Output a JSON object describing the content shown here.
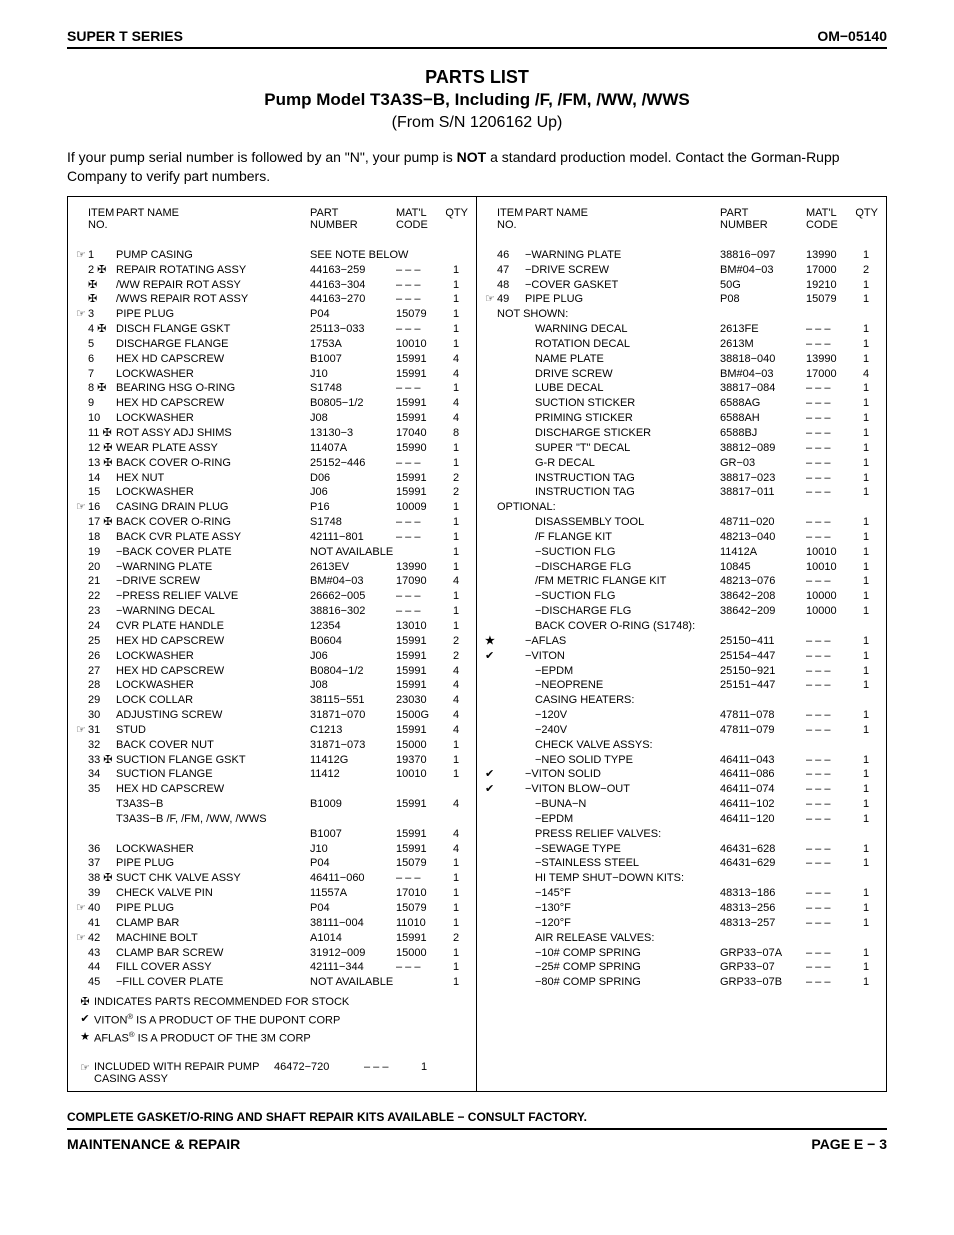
{
  "header_left": "SUPER T SERIES",
  "header_right": "OM−05140",
  "title_line1": "PARTS LIST",
  "title_line2": "Pump Model T3A3S−B, Including /F, /FM, /WW, /WWS",
  "title_line3": "(From S/N 1206162 Up)",
  "intro_before": "If your pump serial number is followed by an \"N\", your pump is ",
  "intro_bold": "NOT",
  "intro_after": " a standard production model. Contact the Gorman-Rupp Company to verify part numbers.",
  "col_head": {
    "item1": "ITEM",
    "item2": "NO.",
    "name": "PART NAME",
    "part1": "PART",
    "part2": "NUMBER",
    "matl1": "MAT'L",
    "matl2": "CODE",
    "qty": "QTY"
  },
  "left_rows": [
    {
      "sym": "☞",
      "item": "1",
      "name": "PUMP CASING",
      "part": "SEE NOTE BELOW",
      "matl": "",
      "qty": ""
    },
    {
      "sym": "",
      "item": "2 ✠",
      "name": "REPAIR ROTATING ASSY",
      "part": "44163−259",
      "matl": "– – –",
      "qty": "1"
    },
    {
      "sym": "",
      "item": "   ✠",
      "name": "/WW REPAIR ROT ASSY",
      "part": "44163−304",
      "matl": "– – –",
      "qty": "1"
    },
    {
      "sym": "",
      "item": "   ✠",
      "name": "/WWS REPAIR ROT ASSY",
      "part": "44163−270",
      "matl": "– – –",
      "qty": "1"
    },
    {
      "sym": "☞",
      "item": "3",
      "name": "PIPE PLUG",
      "part": "P04",
      "matl": "15079",
      "qty": "1"
    },
    {
      "sym": "",
      "item": "4 ✠",
      "name": "DISCH FLANGE GSKT",
      "part": "25113−033",
      "matl": "– – –",
      "qty": "1"
    },
    {
      "sym": "",
      "item": "5",
      "name": "DISCHARGE FLANGE",
      "part": "1753A",
      "matl": "10010",
      "qty": "1"
    },
    {
      "sym": "",
      "item": "6",
      "name": "HEX HD CAPSCREW",
      "part": "B1007",
      "matl": "15991",
      "qty": "4"
    },
    {
      "sym": "",
      "item": "7",
      "name": "LOCKWASHER",
      "part": "J10",
      "matl": "15991",
      "qty": "4"
    },
    {
      "sym": "",
      "item": "8 ✠",
      "name": "BEARING HSG O-RING",
      "part": "S1748",
      "matl": "– – –",
      "qty": "1"
    },
    {
      "sym": "",
      "item": "9",
      "name": "HEX HD CAPSCREW",
      "part": "B0805−1/2",
      "matl": "15991",
      "qty": "4"
    },
    {
      "sym": "",
      "item": "10",
      "name": "LOCKWASHER",
      "part": "J08",
      "matl": "15991",
      "qty": "4"
    },
    {
      "sym": "",
      "item": "11 ✠",
      "name": "ROT ASSY ADJ SHIMS",
      "part": "13130−3",
      "matl": "17040",
      "qty": "8"
    },
    {
      "sym": "",
      "item": "12 ✠",
      "name": "WEAR PLATE ASSY",
      "part": "11407A",
      "matl": "15990",
      "qty": "1"
    },
    {
      "sym": "",
      "item": "13 ✠",
      "name": "BACK COVER O-RING",
      "part": "25152−446",
      "matl": "– – –",
      "qty": "1"
    },
    {
      "sym": "",
      "item": "14",
      "name": "HEX NUT",
      "part": "D06",
      "matl": "15991",
      "qty": "2"
    },
    {
      "sym": "",
      "item": "15",
      "name": "LOCKWASHER",
      "part": "J06",
      "matl": "15991",
      "qty": "2"
    },
    {
      "sym": "☞",
      "item": "16",
      "name": "CASING DRAIN PLUG",
      "part": "P16",
      "matl": "10009",
      "qty": "1"
    },
    {
      "sym": "",
      "item": "17 ✠",
      "name": "BACK COVER O-RING",
      "part": "S1748",
      "matl": "– – –",
      "qty": "1"
    },
    {
      "sym": "",
      "item": "18",
      "name": "BACK CVR PLATE ASSY",
      "part": "42111−801",
      "matl": "– – –",
      "qty": "1"
    },
    {
      "sym": "",
      "item": "19",
      "name": "−BACK COVER PLATE",
      "part": "NOT AVAILABLE",
      "matl": "",
      "qty": "1"
    },
    {
      "sym": "",
      "item": "20",
      "name": "−WARNING PLATE",
      "part": "2613EV",
      "matl": "13990",
      "qty": "1"
    },
    {
      "sym": "",
      "item": "21",
      "name": "−DRIVE SCREW",
      "part": "BM#04−03",
      "matl": "17090",
      "qty": "4"
    },
    {
      "sym": "",
      "item": "22",
      "name": "−PRESS RELIEF VALVE",
      "part": "26662−005",
      "matl": "– – –",
      "qty": "1"
    },
    {
      "sym": "",
      "item": "23",
      "name": "−WARNING DECAL",
      "part": "38816−302",
      "matl": "– – –",
      "qty": "1"
    },
    {
      "sym": "",
      "item": "24",
      "name": "CVR PLATE HANDLE",
      "part": "12354",
      "matl": "13010",
      "qty": "1"
    },
    {
      "sym": "",
      "item": "25",
      "name": "HEX HD CAPSCREW",
      "part": "B0604",
      "matl": "15991",
      "qty": "2"
    },
    {
      "sym": "",
      "item": "26",
      "name": "LOCKWASHER",
      "part": "J06",
      "matl": "15991",
      "qty": "2"
    },
    {
      "sym": "",
      "item": "27",
      "name": "HEX HD CAPSCREW",
      "part": "B0804−1/2",
      "matl": "15991",
      "qty": "4"
    },
    {
      "sym": "",
      "item": "28",
      "name": "LOCKWASHER",
      "part": "J08",
      "matl": "15991",
      "qty": "4"
    },
    {
      "sym": "",
      "item": "29",
      "name": "LOCK COLLAR",
      "part": "38115−551",
      "matl": "23030",
      "qty": "4"
    },
    {
      "sym": "",
      "item": "30",
      "name": "ADJUSTING SCREW",
      "part": "31871−070",
      "matl": "1500G",
      "qty": "4"
    },
    {
      "sym": "☞",
      "item": "31",
      "name": "STUD",
      "part": "C1213",
      "matl": "15991",
      "qty": "4"
    },
    {
      "sym": "",
      "item": "32",
      "name": "BACK COVER NUT",
      "part": "31871−073",
      "matl": "15000",
      "qty": "1"
    },
    {
      "sym": "",
      "item": "33 ✠",
      "name": "SUCTION FLANGE GSKT",
      "part": "11412G",
      "matl": "19370",
      "qty": "1"
    },
    {
      "sym": "",
      "item": "34",
      "name": "SUCTION FLANGE",
      "part": "11412",
      "matl": "10010",
      "qty": "1"
    },
    {
      "sym": "",
      "item": "35",
      "name": "HEX HD CAPSCREW",
      "part": "",
      "matl": "",
      "qty": ""
    },
    {
      "sym": "",
      "item": "",
      "name": "T3A3S−B",
      "part": "B1009",
      "matl": "15991",
      "qty": "4"
    },
    {
      "sym": "",
      "item": "",
      "name": "T3A3S−B /F, /FM, /WW, /WWS",
      "part": "",
      "matl": "",
      "qty": ""
    },
    {
      "sym": "",
      "item": "",
      "name": "",
      "part": "B1007",
      "matl": "15991",
      "qty": "4"
    },
    {
      "sym": "",
      "item": "36",
      "name": "LOCKWASHER",
      "part": "J10",
      "matl": "15991",
      "qty": "4"
    },
    {
      "sym": "",
      "item": "37",
      "name": "PIPE PLUG",
      "part": "P04",
      "matl": "15079",
      "qty": "1"
    },
    {
      "sym": "",
      "item": "38 ✠",
      "name": "SUCT CHK VALVE ASSY",
      "part": "46411−060",
      "matl": "– – –",
      "qty": "1"
    },
    {
      "sym": "",
      "item": "39",
      "name": "CHECK VALVE PIN",
      "part": "11557A",
      "matl": "17010",
      "qty": "1"
    },
    {
      "sym": "☞",
      "item": "40",
      "name": "PIPE PLUG",
      "part": "P04",
      "matl": "15079",
      "qty": "1"
    },
    {
      "sym": "",
      "item": "41",
      "name": "CLAMP BAR",
      "part": "38111−004",
      "matl": "11010",
      "qty": "1"
    },
    {
      "sym": "☞",
      "item": "42",
      "name": "MACHINE BOLT",
      "part": "A1014",
      "matl": "15991",
      "qty": "2"
    },
    {
      "sym": "",
      "item": "43",
      "name": "CLAMP BAR SCREW",
      "part": "31912−009",
      "matl": "15000",
      "qty": "1"
    },
    {
      "sym": "",
      "item": "44",
      "name": "FILL COVER ASSY",
      "part": "42111−344",
      "matl": "– – –",
      "qty": "1"
    },
    {
      "sym": "",
      "item": "45",
      "name": "−FILL COVER PLATE",
      "part": "NOT AVAILABLE",
      "matl": "",
      "qty": "1"
    }
  ],
  "right_rows": [
    {
      "sym": "",
      "item": "46",
      "name": "−WARNING PLATE",
      "part": "38816−097",
      "matl": "13990",
      "qty": "1"
    },
    {
      "sym": "",
      "item": "47",
      "name": "−DRIVE SCREW",
      "part": "BM#04−03",
      "matl": "17000",
      "qty": "2"
    },
    {
      "sym": "",
      "item": "48",
      "name": "−COVER GASKET",
      "part": "50G",
      "matl": "19210",
      "qty": "1"
    },
    {
      "sym": "☞",
      "item": "49",
      "name": "PIPE PLUG",
      "part": "P08",
      "matl": "15079",
      "qty": "1"
    },
    {
      "sym": "",
      "item": "",
      "name": "NOT SHOWN:",
      "noitem": true
    },
    {
      "sym": "",
      "item": "",
      "name": "WARNING DECAL",
      "part": "2613FE",
      "matl": "– – –",
      "qty": "1",
      "indent": 1
    },
    {
      "sym": "",
      "item": "",
      "name": "ROTATION DECAL",
      "part": "2613M",
      "matl": "– – –",
      "qty": "1",
      "indent": 1
    },
    {
      "sym": "",
      "item": "",
      "name": "NAME PLATE",
      "part": "38818−040",
      "matl": "13990",
      "qty": "1",
      "indent": 1
    },
    {
      "sym": "",
      "item": "",
      "name": "DRIVE SCREW",
      "part": "BM#04−03",
      "matl": "17000",
      "qty": "4",
      "indent": 1
    },
    {
      "sym": "",
      "item": "",
      "name": "LUBE DECAL",
      "part": "38817−084",
      "matl": "– – –",
      "qty": "1",
      "indent": 1
    },
    {
      "sym": "",
      "item": "",
      "name": "SUCTION STICKER",
      "part": "6588AG",
      "matl": "– – –",
      "qty": "1",
      "indent": 1
    },
    {
      "sym": "",
      "item": "",
      "name": "PRIMING STICKER",
      "part": "6588AH",
      "matl": "– – –",
      "qty": "1",
      "indent": 1
    },
    {
      "sym": "",
      "item": "",
      "name": "DISCHARGE STICKER",
      "part": "6588BJ",
      "matl": "– – –",
      "qty": "1",
      "indent": 1
    },
    {
      "sym": "",
      "item": "",
      "name": "SUPER \"T\" DECAL",
      "part": "38812−089",
      "matl": "– – –",
      "qty": "1",
      "indent": 1
    },
    {
      "sym": "",
      "item": "",
      "name": "G-R DECAL",
      "part": "GR−03",
      "matl": "– – –",
      "qty": "1",
      "indent": 1
    },
    {
      "sym": "",
      "item": "",
      "name": "INSTRUCTION TAG",
      "part": "38817−023",
      "matl": "– – –",
      "qty": "1",
      "indent": 1
    },
    {
      "sym": "",
      "item": "",
      "name": "INSTRUCTION TAG",
      "part": "38817−011",
      "matl": "– – –",
      "qty": "1",
      "indent": 1
    },
    {
      "sym": "",
      "item": "",
      "name": "OPTIONAL:",
      "noitem": true
    },
    {
      "sym": "",
      "item": "",
      "name": "DISASSEMBLY TOOL",
      "part": "48711−020",
      "matl": "– – –",
      "qty": "1",
      "indent": 1
    },
    {
      "sym": "",
      "item": "",
      "name": "/F FLANGE KIT",
      "part": "48213−040",
      "matl": "– – –",
      "qty": "1",
      "indent": 1
    },
    {
      "sym": "",
      "item": "",
      "name": "−SUCTION FLG",
      "part": "11412A",
      "matl": "10010",
      "qty": "1",
      "indent": 1
    },
    {
      "sym": "",
      "item": "",
      "name": "−DISCHARGE FLG",
      "part": "10845",
      "matl": "10010",
      "qty": "1",
      "indent": 1
    },
    {
      "sym": "",
      "item": "",
      "name": "/FM METRIC FLANGE KIT",
      "part": "48213−076",
      "matl": "– – –",
      "qty": "1",
      "indent": 1
    },
    {
      "sym": "",
      "item": "",
      "name": "−SUCTION FLG",
      "part": "38642−208",
      "matl": "10000",
      "qty": "1",
      "indent": 1
    },
    {
      "sym": "",
      "item": "",
      "name": "−DISCHARGE FLG",
      "part": "38642−209",
      "matl": "10000",
      "qty": "1",
      "indent": 1
    },
    {
      "sym": "",
      "item": "",
      "name": "BACK COVER O-RING (S1748):",
      "indent": 1,
      "noval": true
    },
    {
      "sym": "★",
      "item": "",
      "name": "−AFLAS",
      "part": "25150−411",
      "matl": "– – –",
      "qty": "1",
      "indent": 0,
      "symbold": true
    },
    {
      "sym": "✔",
      "item": "",
      "name": "−VITON",
      "part": "25154−447",
      "matl": "– – –",
      "qty": "1",
      "indent": 0
    },
    {
      "sym": "",
      "item": "",
      "name": "−EPDM",
      "part": "25150−921",
      "matl": "– – –",
      "qty": "1",
      "indent": 1
    },
    {
      "sym": "",
      "item": "",
      "name": "−NEOPRENE",
      "part": "25151−447",
      "matl": "– – –",
      "qty": "1",
      "indent": 1
    },
    {
      "sym": "",
      "item": "",
      "name": "CASING HEATERS:",
      "indent": 1,
      "noval": true
    },
    {
      "sym": "",
      "item": "",
      "name": "−120V",
      "part": "47811−078",
      "matl": "– – –",
      "qty": "1",
      "indent": 1
    },
    {
      "sym": "",
      "item": "",
      "name": "−240V",
      "part": "47811−079",
      "matl": "– – –",
      "qty": "1",
      "indent": 1
    },
    {
      "sym": "",
      "item": "",
      "name": "CHECK VALVE ASSYS:",
      "indent": 1,
      "noval": true
    },
    {
      "sym": "",
      "item": "",
      "name": "−NEO SOLID TYPE",
      "part": "46411−043",
      "matl": "– – –",
      "qty": "1",
      "indent": 1
    },
    {
      "sym": "✔",
      "item": "",
      "name": "−VITON SOLID",
      "part": "46411−086",
      "matl": "– – –",
      "qty": "1",
      "indent": 0
    },
    {
      "sym": "✔",
      "item": "",
      "name": "−VITON BLOW−OUT",
      "part": "46411−074",
      "matl": "– – –",
      "qty": "1",
      "indent": 0
    },
    {
      "sym": "",
      "item": "",
      "name": "−BUNA−N",
      "part": "46411−102",
      "matl": "– – –",
      "qty": "1",
      "indent": 1
    },
    {
      "sym": "",
      "item": "",
      "name": "−EPDM",
      "part": "46411−120",
      "matl": "– – –",
      "qty": "1",
      "indent": 1
    },
    {
      "sym": "",
      "item": "",
      "name": "PRESS RELIEF VALVES:",
      "indent": 1,
      "noval": true
    },
    {
      "sym": "",
      "item": "",
      "name": "−SEWAGE TYPE",
      "part": "46431−628",
      "matl": "– – –",
      "qty": "1",
      "indent": 1
    },
    {
      "sym": "",
      "item": "",
      "name": "−STAINLESS STEEL",
      "part": "46431−629",
      "matl": "– – –",
      "qty": "1",
      "indent": 1
    },
    {
      "sym": "",
      "item": "",
      "name": "HI TEMP SHUT−DOWN KITS:",
      "indent": 1,
      "noval": true
    },
    {
      "sym": "",
      "item": "",
      "name": "−145°F",
      "part": "48313−186",
      "matl": "– – –",
      "qty": "1",
      "indent": 1
    },
    {
      "sym": "",
      "item": "",
      "name": "−130°F",
      "part": "48313−256",
      "matl": "– – –",
      "qty": "1",
      "indent": 1
    },
    {
      "sym": "",
      "item": "",
      "name": "−120°F",
      "part": "48313−257",
      "matl": "– – –",
      "qty": "1",
      "indent": 1
    },
    {
      "sym": "",
      "item": "",
      "name": "AIR RELEASE VALVES:",
      "indent": 1,
      "noval": true
    },
    {
      "sym": "",
      "item": "",
      "name": "−10# COMP SPRING",
      "part": "GRP33−07A",
      "matl": "– – –",
      "qty": "1",
      "indent": 1
    },
    {
      "sym": "",
      "item": "",
      "name": "−25# COMP SPRING",
      "part": "GRP33−07",
      "matl": "– – –",
      "qty": "1",
      "indent": 1
    },
    {
      "sym": "",
      "item": "",
      "name": "−80# COMP SPRING",
      "part": "GRP33−07B",
      "matl": "– – –",
      "qty": "1",
      "indent": 1
    }
  ],
  "legend": [
    {
      "sym": "✠",
      "txt": "INDICATES PARTS RECOMMENDED FOR STOCK"
    },
    {
      "sym": "✔",
      "txt": "VITON® IS A  PRODUCT OF THE DUPONT CORP"
    },
    {
      "sym": "★",
      "txt": "AFLAS® IS A PRODUCT OF THE 3M CORP"
    }
  ],
  "included": {
    "sym": "☞",
    "txt": "INCLUDED WITH REPAIR PUMP CASING ASSY",
    "part": "46472−720",
    "matl": "– – –",
    "qty": "1"
  },
  "complete": "COMPLETE GASKET/O-RING AND SHAFT REPAIR KITS AVAILABLE − CONSULT FACTORY.",
  "footer_left": "MAINTENANCE & REPAIR",
  "footer_right": "PAGE E − 3"
}
